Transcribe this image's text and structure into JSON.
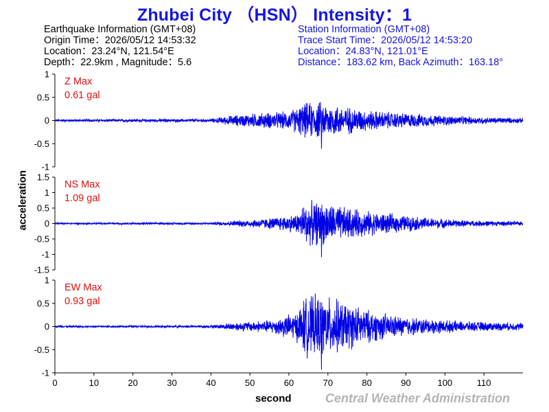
{
  "header": {
    "title": "Zhubei City （HSN） Intensity：1"
  },
  "earthquake_info": {
    "heading": "Earthquake Information  (GMT+08)",
    "origin_time": "Origin Time：2026/05/12 14:53:32",
    "location": "Location：23.24°N, 121.54°E",
    "depth_magnitude": "Depth：22.9km , Magnitude：5.6"
  },
  "station_info": {
    "heading": "Station Information  (GMT+08)",
    "trace_start": "Trace Start Time：2026/05/12 14:53:20",
    "location": "Location：24.83°N, 121.01°E",
    "distance_azimuth": "Distance：183.62 km, Back Azimuth：163.18°"
  },
  "footer": {
    "credit": "Central Weather Administration"
  },
  "colors": {
    "trace": "#0000e6",
    "title": "#1515e0",
    "max_label": "#e01010",
    "credit": "#b4b4b4"
  },
  "chart_data": {
    "type": "line",
    "xlabel": "second",
    "ylabel": "acceleration",
    "xlim": [
      0,
      120
    ],
    "x_ticks": [
      "0",
      "10",
      "20",
      "30",
      "40",
      "50",
      "60",
      "70",
      "80",
      "90",
      "100",
      "110"
    ],
    "grid": false,
    "panels": [
      {
        "component": "Z",
        "max_label": "Z Max",
        "max_value": "0.61 gal",
        "ylim": [
          -1,
          1
        ],
        "y_ticks": [
          "1",
          "0.5",
          "0",
          "-0.5",
          "-1"
        ],
        "peak": 0.61,
        "envelope": [
          [
            0,
            0.03
          ],
          [
            40,
            0.04
          ],
          [
            45,
            0.12
          ],
          [
            52,
            0.18
          ],
          [
            60,
            0.22
          ],
          [
            64,
            0.42
          ],
          [
            68,
            0.45
          ],
          [
            74,
            0.35
          ],
          [
            80,
            0.25
          ],
          [
            90,
            0.18
          ],
          [
            100,
            0.12
          ],
          [
            110,
            0.08
          ],
          [
            120,
            0.06
          ]
        ]
      },
      {
        "component": "NS",
        "max_label": "NS Max",
        "max_value": "1.09 gal",
        "ylim": [
          -1.5,
          1.5
        ],
        "y_ticks": [
          "1.5",
          "1",
          "0.5",
          "0",
          "-0.5",
          "-1",
          "-1.5"
        ],
        "peak": 1.09,
        "envelope": [
          [
            0,
            0.03
          ],
          [
            40,
            0.04
          ],
          [
            46,
            0.1
          ],
          [
            55,
            0.2
          ],
          [
            62,
            0.35
          ],
          [
            64,
            0.75
          ],
          [
            68,
            0.8
          ],
          [
            74,
            0.6
          ],
          [
            80,
            0.45
          ],
          [
            88,
            0.32
          ],
          [
            96,
            0.2
          ],
          [
            105,
            0.12
          ],
          [
            120,
            0.07
          ]
        ]
      },
      {
        "component": "EW",
        "max_label": "EW Max",
        "max_value": "0.93 gal",
        "ylim": [
          -1,
          1
        ],
        "y_ticks": [
          "1",
          "0.5",
          "0",
          "-0.5",
          "-1"
        ],
        "peak": 0.93,
        "envelope": [
          [
            0,
            0.02
          ],
          [
            40,
            0.03
          ],
          [
            46,
            0.1
          ],
          [
            55,
            0.15
          ],
          [
            62,
            0.35
          ],
          [
            64,
            0.7
          ],
          [
            68,
            0.75
          ],
          [
            74,
            0.6
          ],
          [
            80,
            0.4
          ],
          [
            88,
            0.25
          ],
          [
            96,
            0.18
          ],
          [
            105,
            0.12
          ],
          [
            120,
            0.09
          ]
        ]
      }
    ]
  }
}
